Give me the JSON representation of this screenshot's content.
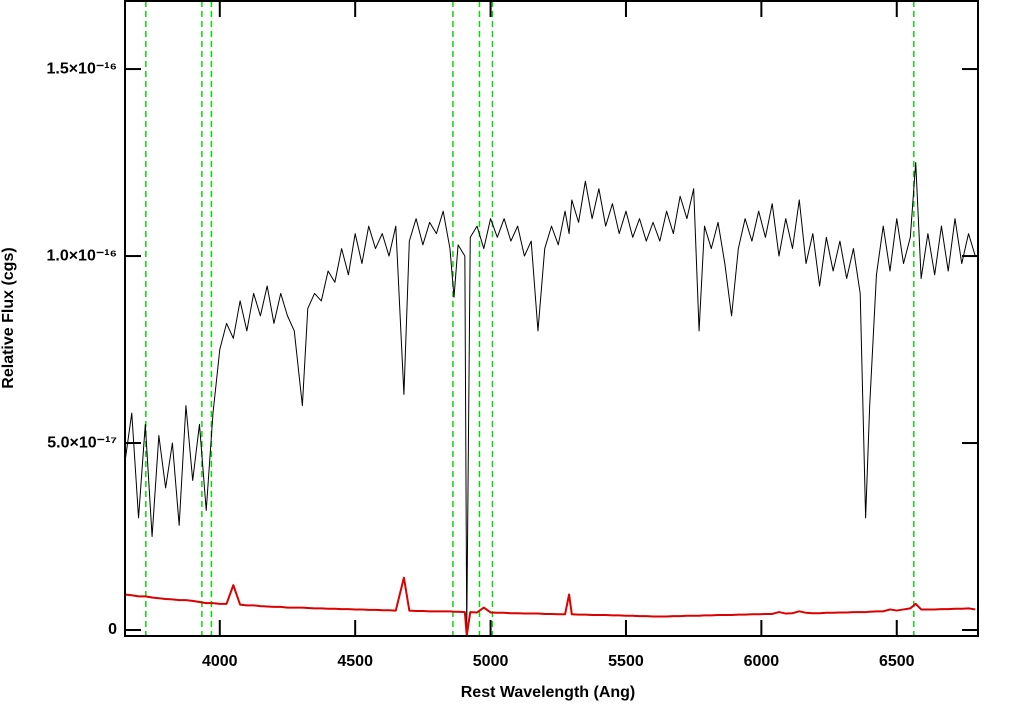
{
  "chart_data": {
    "type": "line",
    "xlabel": "Rest Wavelength (Ang)",
    "ylabel": "Relative Flux (cgs)",
    "xlim": [
      3650,
      6800
    ],
    "ylim": [
      -1.6e-18,
      1.682e-16
    ],
    "xticks": [
      4000,
      4500,
      5000,
      5500,
      6000,
      6500
    ],
    "yticks": [
      0,
      {
        "value": 5e-17,
        "label": "5.0×10⁻¹⁷"
      },
      {
        "value": 1e-16,
        "label": "1.0×10⁻¹⁶"
      },
      {
        "value": 1.5e-16,
        "label": "1.5×10⁻¹⁶"
      }
    ],
    "reference_lines": {
      "color": "#00dd00",
      "x": [
        3727,
        3934,
        3969,
        4861,
        4959,
        5007,
        6563
      ]
    },
    "x": [
      3650,
      3675,
      3700,
      3725,
      3750,
      3775,
      3800,
      3825,
      3850,
      3875,
      3900,
      3925,
      3950,
      3975,
      4000,
      4025,
      4050,
      4075,
      4100,
      4125,
      4150,
      4175,
      4200,
      4225,
      4250,
      4275,
      4305,
      4325,
      4350,
      4375,
      4400,
      4425,
      4450,
      4475,
      4500,
      4525,
      4550,
      4575,
      4600,
      4625,
      4650,
      4680,
      4700,
      4725,
      4750,
      4775,
      4800,
      4825,
      4850,
      4865,
      4880,
      4905,
      4912,
      4925,
      4950,
      4975,
      5000,
      5025,
      5050,
      5075,
      5100,
      5125,
      5150,
      5175,
      5200,
      5225,
      5250,
      5275,
      5290,
      5300,
      5325,
      5350,
      5375,
      5400,
      5425,
      5450,
      5475,
      5500,
      5525,
      5550,
      5575,
      5600,
      5625,
      5650,
      5675,
      5700,
      5725,
      5750,
      5770,
      5790,
      5815,
      5840,
      5865,
      5890,
      5915,
      5940,
      5965,
      5990,
      6015,
      6040,
      6065,
      6090,
      6115,
      6140,
      6165,
      6190,
      6215,
      6240,
      6265,
      6290,
      6315,
      6340,
      6365,
      6385,
      6400,
      6425,
      6450,
      6475,
      6500,
      6525,
      6550,
      6570,
      6590,
      6615,
      6640,
      6665,
      6690,
      6715,
      6740,
      6765,
      6790
    ],
    "series": [
      {
        "color": "#000000",
        "values": [
          4.5e-17,
          5.8e-17,
          3e-17,
          5.5e-17,
          2.5e-17,
          5.2e-17,
          3.8e-17,
          5e-17,
          2.8e-17,
          6e-17,
          4e-17,
          5.5e-17,
          3.2e-17,
          5.8e-17,
          7.5e-17,
          8.2e-17,
          7.8e-17,
          8.8e-17,
          8e-17,
          9e-17,
          8.4e-17,
          9.2e-17,
          8.2e-17,
          9e-17,
          8.4e-17,
          8e-17,
          6e-17,
          8.6e-17,
          9e-17,
          8.8e-17,
          9.6e-17,
          9.3e-17,
          1.02e-16,
          9.5e-17,
          1.06e-16,
          9.8e-17,
          1.08e-16,
          1.02e-16,
          1.06e-16,
          1e-16,
          1.08e-16,
          6.3e-17,
          1.04e-16,
          1.1e-16,
          1.03e-16,
          1.09e-16,
          1.06e-16,
          1.12e-16,
          1.02e-16,
          8.9e-17,
          1.03e-16,
          1e-16,
          0,
          1.05e-16,
          1.08e-16,
          1.02e-16,
          1.1e-16,
          1.05e-16,
          1.1e-16,
          1.04e-16,
          1.08e-16,
          1e-16,
          1.04e-16,
          8e-17,
          1.02e-16,
          1.08e-16,
          1.03e-16,
          1.12e-16,
          1.06e-16,
          1.15e-16,
          1.09e-16,
          1.2e-16,
          1.1e-16,
          1.18e-16,
          1.08e-16,
          1.14e-16,
          1.06e-16,
          1.12e-16,
          1.05e-16,
          1.1e-16,
          1.04e-16,
          1.09e-16,
          1.04e-16,
          1.12e-16,
          1.06e-16,
          1.16e-16,
          1.1e-16,
          1.18e-16,
          8e-17,
          1.08e-16,
          1.02e-16,
          1.09e-16,
          9.8e-17,
          8.4e-17,
          1.02e-16,
          1.1e-16,
          1.04e-16,
          1.12e-16,
          1.05e-16,
          1.14e-16,
          1e-16,
          1.1e-16,
          1.02e-16,
          1.15e-16,
          9.8e-17,
          1.06e-16,
          9.2e-17,
          1.05e-16,
          9.6e-17,
          1.04e-16,
          9.4e-17,
          1.02e-16,
          9e-17,
          3e-17,
          6e-17,
          9.5e-17,
          1.08e-16,
          9.6e-17,
          1.1e-16,
          9.8e-17,
          1.05e-16,
          1.25e-16,
          9.4e-17,
          1.06e-16,
          9.5e-17,
          1.08e-16,
          9.6e-17,
          1.1e-16,
          9.8e-17,
          1.06e-16,
          1e-16
        ]
      },
      {
        "color": "#dd0000",
        "values": [
          9.5e-18,
          9.3e-18,
          9e-18,
          9e-18,
          8.7e-18,
          8.5e-18,
          8.3e-18,
          8.2e-18,
          8e-18,
          8e-18,
          7.8e-18,
          7.5e-18,
          7.2e-18,
          7.2e-18,
          7e-18,
          7e-18,
          1.2e-17,
          6.8e-18,
          6.6e-18,
          6.6e-18,
          6.4e-18,
          6.3e-18,
          6.2e-18,
          6.2e-18,
          6e-18,
          6e-18,
          6e-18,
          5.9e-18,
          5.8e-18,
          5.8e-18,
          5.7e-18,
          5.7e-18,
          5.6e-18,
          5.6e-18,
          5.5e-18,
          5.5e-18,
          5.4e-18,
          5.4e-18,
          5.3e-18,
          5.3e-18,
          5.2e-18,
          1.4e-17,
          5.2e-18,
          5.1e-18,
          5.1e-18,
          5e-18,
          5e-18,
          5e-18,
          5e-18,
          4.9e-18,
          4.9e-18,
          4.8e-18,
          -1.5e-18,
          4.8e-18,
          4.7e-18,
          6e-18,
          4.7e-18,
          4.6e-18,
          4.6e-18,
          4.5e-18,
          4.5e-18,
          4.4e-18,
          4.4e-18,
          4.4e-18,
          4.3e-18,
          4.3e-18,
          4.2e-18,
          4.2e-18,
          9.5e-18,
          4.2e-18,
          4.1e-18,
          4.1e-18,
          4e-18,
          4e-18,
          4e-18,
          3.9e-18,
          3.9e-18,
          3.8e-18,
          3.8e-18,
          3.7e-18,
          3.7e-18,
          3.6e-18,
          3.6e-18,
          3.6e-18,
          3.7e-18,
          3.7e-18,
          3.8e-18,
          3.8e-18,
          3.8e-18,
          3.9e-18,
          3.9e-18,
          4e-18,
          4e-18,
          4e-18,
          4.1e-18,
          4.1e-18,
          4.2e-18,
          4.2e-18,
          4.3e-18,
          4.3e-18,
          4.8e-18,
          4.4e-18,
          4.5e-18,
          5e-18,
          4.6e-18,
          4.5e-18,
          4.5e-18,
          4.6e-18,
          4.6e-18,
          4.7e-18,
          4.7e-18,
          4.8e-18,
          4.8e-18,
          4.8e-18,
          4.9e-18,
          5e-18,
          5e-18,
          5.5e-18,
          5.2e-18,
          5.5e-18,
          5.8e-18,
          7e-18,
          5.5e-18,
          5.5e-18,
          5.5e-18,
          5.6e-18,
          5.6e-18,
          5.7e-18,
          5.7e-18,
          5.8e-18,
          5.5e-18
        ]
      }
    ]
  }
}
